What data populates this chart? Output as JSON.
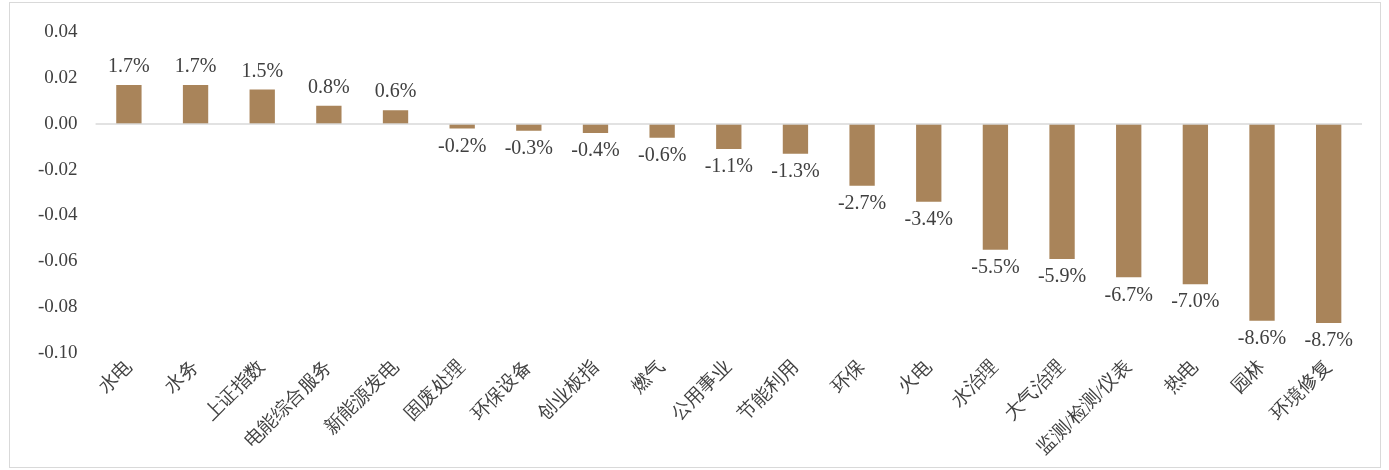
{
  "chart_data": {
    "type": "bar",
    "categories": [
      "水电",
      "水务",
      "上证指数",
      "电能综合服务",
      "新能源发电",
      "固废处理",
      "环保设备",
      "创业板指",
      "燃气",
      "公用事业",
      "节能利用",
      "环保",
      "火电",
      "水治理",
      "大气治理",
      "监测/检测/仪表",
      "热电",
      "园林",
      "环境修复"
    ],
    "values": [
      0.017,
      0.017,
      0.015,
      0.008,
      0.006,
      -0.002,
      -0.003,
      -0.004,
      -0.006,
      -0.011,
      -0.013,
      -0.027,
      -0.034,
      -0.055,
      -0.059,
      -0.067,
      -0.07,
      -0.086,
      -0.087
    ],
    "value_labels": [
      "1.7%",
      "1.7%",
      "1.5%",
      "0.8%",
      "0.6%",
      "-0.2%",
      "-0.3%",
      "-0.4%",
      "-0.6%",
      "-1.1%",
      "-1.3%",
      "-2.7%",
      "-3.4%",
      "-5.5%",
      "-5.9%",
      "-6.7%",
      "-7.0%",
      "-8.6%",
      "-8.7%"
    ],
    "color": "#a9845a",
    "ylim": [
      -0.1,
      0.04
    ],
    "yticks": [
      {
        "value": -0.1,
        "label": "-0.10"
      },
      {
        "value": -0.08,
        "label": "-0.08"
      },
      {
        "value": -0.06,
        "label": "-0.06"
      },
      {
        "value": -0.04,
        "label": "-0.04"
      },
      {
        "value": -0.02,
        "label": "-0.02"
      },
      {
        "value": 0,
        "label": "0.00"
      },
      {
        "value": 0.02,
        "label": "0.02"
      },
      {
        "value": 0.04,
        "label": "0.04"
      }
    ],
    "ref_lines": [
      {
        "axis": "y",
        "value": 0,
        "color": "#d9d9d9"
      }
    ],
    "grid": false,
    "legend": false
  }
}
